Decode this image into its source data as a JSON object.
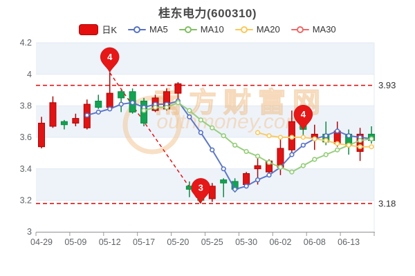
{
  "title": "桂东电力(600310)",
  "legend": [
    {
      "id": "dayk",
      "label": "日K",
      "type": "rect",
      "color": "#e60f0f",
      "border": "#ad0606"
    },
    {
      "id": "ma5",
      "label": "MA5",
      "type": "line",
      "color": "#5470c6"
    },
    {
      "id": "ma10",
      "label": "MA10",
      "type": "line",
      "color": "#7ec05f"
    },
    {
      "id": "ma20",
      "label": "MA20",
      "type": "line",
      "color": "#fac858"
    },
    {
      "id": "ma30",
      "label": "MA30",
      "type": "line",
      "color": "#ee6666"
    }
  ],
  "watermark": {
    "cjk": "南方财富网",
    "latin": "outhmoney.com"
  },
  "chart_data": {
    "type": "candlestick",
    "title": "桂东电力(600310)",
    "ylim": [
      3.0,
      4.2
    ],
    "y_ticks": [
      4.2,
      4.0,
      3.8,
      3.6,
      3.4,
      3.2,
      3.0
    ],
    "y_tick_labels": [
      "4.2",
      "4",
      "3.8",
      "3.6",
      "3.4",
      "3.2",
      "3"
    ],
    "x_labels": [
      "04-29",
      "05-09",
      "05-12",
      "05-17",
      "05-20",
      "05-25",
      "05-30",
      "06-02",
      "06-08",
      "06-13"
    ],
    "x_label_indices": [
      0,
      3,
      6,
      9,
      12,
      15,
      18,
      21,
      24,
      27
    ],
    "candles": [
      {
        "d": "04-29",
        "o": 3.54,
        "c": 3.69,
        "l": 3.53,
        "h": 3.73
      },
      {
        "d": "05-05",
        "o": 3.67,
        "c": 3.82,
        "l": 3.66,
        "h": 3.86
      },
      {
        "d": "05-06",
        "o": 3.7,
        "c": 3.68,
        "l": 3.65,
        "h": 3.71
      },
      {
        "d": "05-09",
        "o": 3.69,
        "c": 3.72,
        "l": 3.67,
        "h": 3.75
      },
      {
        "d": "05-10",
        "o": 3.66,
        "c": 3.81,
        "l": 3.65,
        "h": 3.84
      },
      {
        "d": "05-11",
        "o": 3.83,
        "c": 3.79,
        "l": 3.78,
        "h": 3.87
      },
      {
        "d": "05-12",
        "o": 3.79,
        "c": 3.88,
        "l": 3.78,
        "h": 4.01
      },
      {
        "d": "05-13",
        "o": 3.89,
        "c": 3.85,
        "l": 3.76,
        "h": 3.9
      },
      {
        "d": "05-16",
        "o": 3.89,
        "c": 3.76,
        "l": 3.75,
        "h": 3.91
      },
      {
        "d": "05-17",
        "o": 3.83,
        "c": 3.69,
        "l": 3.67,
        "h": 3.85
      },
      {
        "d": "05-18",
        "o": 3.77,
        "c": 3.85,
        "l": 3.76,
        "h": 3.87
      },
      {
        "d": "05-19",
        "o": 3.78,
        "c": 3.89,
        "l": 3.77,
        "h": 3.91
      },
      {
        "d": "05-20",
        "o": 3.88,
        "c": 3.94,
        "l": 3.83,
        "h": 3.95
      },
      {
        "d": "05-23",
        "o": 3.29,
        "c": 3.27,
        "l": 3.22,
        "h": 3.32
      },
      {
        "d": "05-24",
        "o": 3.25,
        "c": 3.2,
        "l": 3.18,
        "h": 3.27
      },
      {
        "d": "05-25",
        "o": 3.21,
        "c": 3.29,
        "l": 3.19,
        "h": 3.31
      },
      {
        "d": "05-26",
        "o": 3.33,
        "c": 3.31,
        "l": 3.22,
        "h": 3.34
      },
      {
        "d": "05-27",
        "o": 3.32,
        "c": 3.27,
        "l": 3.25,
        "h": 3.34
      },
      {
        "d": "05-30",
        "o": 3.3,
        "c": 3.37,
        "l": 3.29,
        "h": 3.38
      },
      {
        "d": "05-31",
        "o": 3.4,
        "c": 3.42,
        "l": 3.3,
        "h": 3.49
      },
      {
        "d": "06-01",
        "o": 3.38,
        "c": 3.45,
        "l": 3.36,
        "h": 3.46
      },
      {
        "d": "06-02",
        "o": 3.41,
        "c": 3.53,
        "l": 3.36,
        "h": 3.6
      },
      {
        "d": "06-06",
        "o": 3.52,
        "c": 3.7,
        "l": 3.5,
        "h": 3.77
      },
      {
        "d": "06-07",
        "o": 3.69,
        "c": 3.65,
        "l": 3.61,
        "h": 3.72
      },
      {
        "d": "06-08",
        "o": 3.6,
        "c": 3.62,
        "l": 3.52,
        "h": 3.68
      },
      {
        "d": "06-09",
        "o": 3.62,
        "c": 3.57,
        "l": 3.55,
        "h": 3.7
      },
      {
        "d": "06-10",
        "o": 3.56,
        "c": 3.64,
        "l": 3.54,
        "h": 3.7
      },
      {
        "d": "06-13",
        "o": 3.62,
        "c": 3.55,
        "l": 3.49,
        "h": 3.65
      },
      {
        "d": "06-14",
        "o": 3.51,
        "c": 3.62,
        "l": 3.45,
        "h": 3.66
      },
      {
        "d": "06-15",
        "o": 3.62,
        "c": 3.58,
        "l": 3.56,
        "h": 3.67
      }
    ],
    "series": [
      {
        "name": "MA5",
        "color": "#5470c6",
        "start": 4,
        "values": [
          3.74,
          3.76,
          3.78,
          3.81,
          3.82,
          3.79,
          3.81,
          3.81,
          3.83,
          3.73,
          3.63,
          3.52,
          3.4,
          3.27,
          3.29,
          3.33,
          3.36,
          3.41,
          3.49,
          3.55,
          3.59,
          3.61,
          3.64,
          3.61,
          3.6,
          3.59
        ]
      },
      {
        "name": "MA10",
        "color": "#91cc75",
        "start": 9,
        "values": [
          3.77,
          3.79,
          3.79,
          3.82,
          3.77,
          3.71,
          3.66,
          3.61,
          3.55,
          3.51,
          3.48,
          3.44,
          3.41,
          3.38,
          3.42,
          3.46,
          3.49,
          3.52,
          3.55,
          3.58,
          3.59
        ]
      },
      {
        "name": "MA20",
        "color": "#fac858",
        "start": 19,
        "values": [
          3.63,
          3.61,
          3.6,
          3.6,
          3.6,
          3.59,
          3.58,
          3.56,
          3.55,
          3.54,
          3.54
        ]
      }
    ],
    "ref_lines": [
      {
        "value": 3.93,
        "label": "3.93"
      },
      {
        "value": 3.18,
        "label": "3.18"
      }
    ],
    "trend_line": {
      "from": {
        "index": 6,
        "value": 4.01
      },
      "to": {
        "index": 14,
        "value": 3.18
      }
    },
    "markers": [
      {
        "label": "4",
        "index": 6,
        "value": 4.01
      },
      {
        "label": "3",
        "index": 14,
        "value": 3.18
      },
      {
        "label": "4",
        "index": 23,
        "value": 3.645
      }
    ],
    "colors": {
      "up": "#e01414",
      "up_border": "#ad0505",
      "down": "#14a352",
      "down_border": "#0b8a41",
      "ref": "#e01414",
      "pin": "#e61717",
      "band": "#eef3fa",
      "grid": "#e3e8f1",
      "axis": "#999999",
      "tick_label": "#5f6368",
      "ref_label": "#303133",
      "watermark": "rgba(238,187,132,0.55)",
      "watermark2": "rgba(242,199,152,0.55)"
    }
  }
}
